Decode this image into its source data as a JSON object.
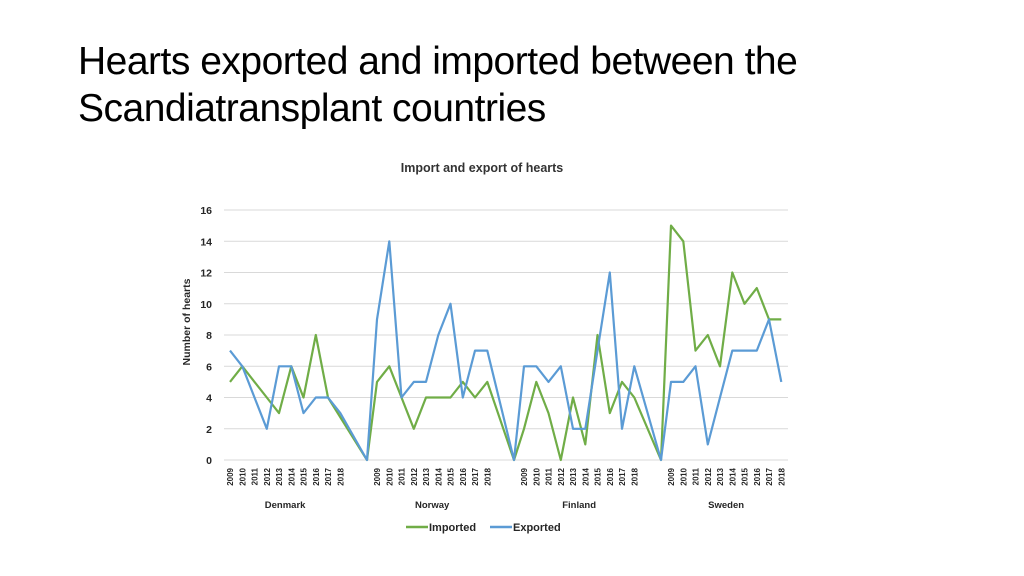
{
  "slide": {
    "title_line1": "Hearts exported and imported between the",
    "title_line2": "Scandiatransplant countries"
  },
  "chart_data": {
    "type": "line",
    "title": "Import and export of hearts",
    "ylabel": "Number of hearts",
    "ylim": [
      0,
      16
    ],
    "yticks": [
      0,
      2,
      4,
      6,
      8,
      10,
      12,
      14,
      16
    ],
    "grid": true,
    "legend_position": "bottom",
    "years": [
      "2009",
      "2010",
      "2011",
      "2012",
      "2013",
      "2014",
      "2015",
      "2016",
      "2017",
      "2018"
    ],
    "groups": [
      "Denmark",
      "Norway",
      "Finland",
      "Sweden"
    ],
    "series": [
      {
        "name": "Imported",
        "color": "#70ad47",
        "values": {
          "Denmark": [
            5,
            6,
            5,
            4,
            3,
            6,
            4,
            8,
            4,
            null
          ],
          "Norway": [
            5,
            6,
            4,
            2,
            4,
            4,
            4,
            5,
            4,
            5
          ],
          "Finland": [
            2,
            5,
            3,
            0,
            4,
            1,
            8,
            3,
            5,
            4
          ],
          "Sweden": [
            15,
            14,
            7,
            8,
            6,
            12,
            10,
            11,
            9,
            9
          ]
        }
      },
      {
        "name": "Exported",
        "color": "#5b9bd5",
        "values": {
          "Denmark": [
            7,
            6,
            4,
            2,
            6,
            6,
            3,
            4,
            4,
            3
          ],
          "Norway": [
            9,
            14,
            4,
            5,
            5,
            8,
            10,
            4,
            7,
            7
          ],
          "Finland": [
            6,
            6,
            5,
            6,
            2,
            2,
            7,
            12,
            2,
            6
          ],
          "Sweden": [
            5,
            5,
            6,
            1,
            4,
            7,
            7,
            7,
            9,
            5
          ]
        }
      }
    ]
  }
}
